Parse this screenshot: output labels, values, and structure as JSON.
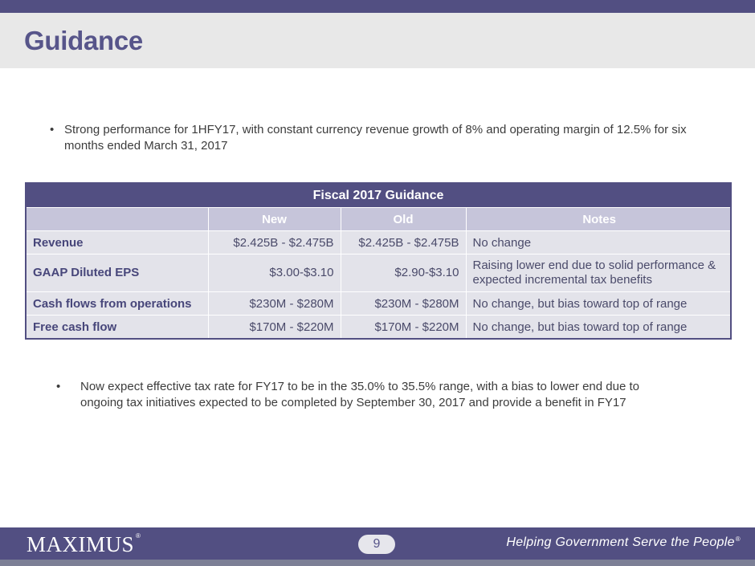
{
  "slide": {
    "title": "Guidance"
  },
  "bullets": [
    {
      "marker": "•",
      "text": "Strong performance for 1HFY17, with constant currency revenue growth of 8% and operating margin of 12.5% for six months ended March 31, 2017"
    },
    {
      "marker": "•",
      "text": "Now expect effective tax rate for FY17 to be in the 35.0% to 35.5% range, with a bias to lower end due to ongoing tax initiatives expected to be completed by September 30, 2017 and provide a benefit in FY17"
    }
  ],
  "table": {
    "caption": "Fiscal 2017 Guidance",
    "columns": [
      "",
      "New",
      "Old",
      "Notes"
    ],
    "rows": [
      {
        "label": "Revenue",
        "new": "$2.425B - $2.475B",
        "old": "$2.425B - $2.475B",
        "notes": "No change"
      },
      {
        "label": "GAAP Diluted EPS",
        "new": "$3.00-$3.10",
        "old": "$2.90-$3.10",
        "notes": "Raising lower end due to solid performance & expected incremental tax benefits"
      },
      {
        "label": "Cash flows from operations",
        "new": "$230M - $280M",
        "old": "$230M - $280M",
        "notes": "No change, but bias toward top of range"
      },
      {
        "label": "Free cash flow",
        "new": "$170M - $220M",
        "old": "$170M - $220M",
        "notes": "No change, but bias toward top of range"
      }
    ]
  },
  "footer": {
    "logo": "MAXIMUS",
    "logo_mark": "®",
    "page_number": "9",
    "tagline": "Helping Government Serve the People",
    "tagline_mark": "®"
  },
  "colors": {
    "brand": "#524f82",
    "title": "#57558a",
    "table_header": "#c6c5da",
    "table_body": "#e3e3ea"
  }
}
